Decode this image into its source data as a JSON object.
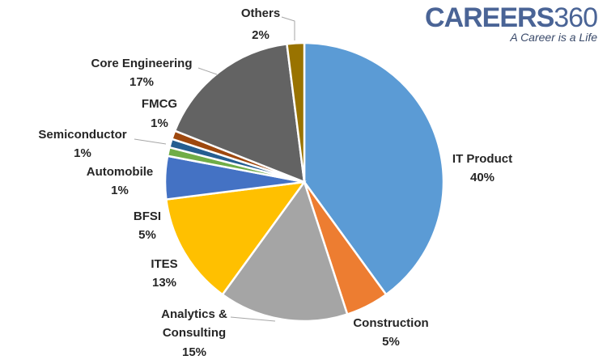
{
  "logo": {
    "brand": "CAREERS",
    "number": "360",
    "tagline": "A Career is a Life"
  },
  "chart_data": {
    "type": "pie",
    "title": "",
    "start": "top, clockwise",
    "slices": [
      {
        "label": "IT Product",
        "value": 40,
        "display": "40%",
        "color": "#5B9BD5"
      },
      {
        "label": "Construction",
        "value": 5,
        "display": "5%",
        "color": "#ED7D31"
      },
      {
        "label": "Analytics & Consulting",
        "value": 15,
        "display": "15%",
        "color": "#A5A5A5"
      },
      {
        "label": "ITES",
        "value": 13,
        "display": "13%",
        "color": "#FFC000"
      },
      {
        "label": "BFSI",
        "value": 5,
        "display": "5%",
        "color": "#4472C4"
      },
      {
        "label": "Automobile",
        "value": 1,
        "display": "1%",
        "color": "#70AD47"
      },
      {
        "label": "Semiconductor",
        "value": 1,
        "display": "1%",
        "color": "#255E91"
      },
      {
        "label": "FMCG",
        "value": 1,
        "display": "1%",
        "color": "#9E480E"
      },
      {
        "label": "Core Engineering",
        "value": 17,
        "display": "17%",
        "color": "#636363"
      },
      {
        "label": "Others",
        "value": 2,
        "display": "2%",
        "color": "#997300"
      }
    ]
  }
}
